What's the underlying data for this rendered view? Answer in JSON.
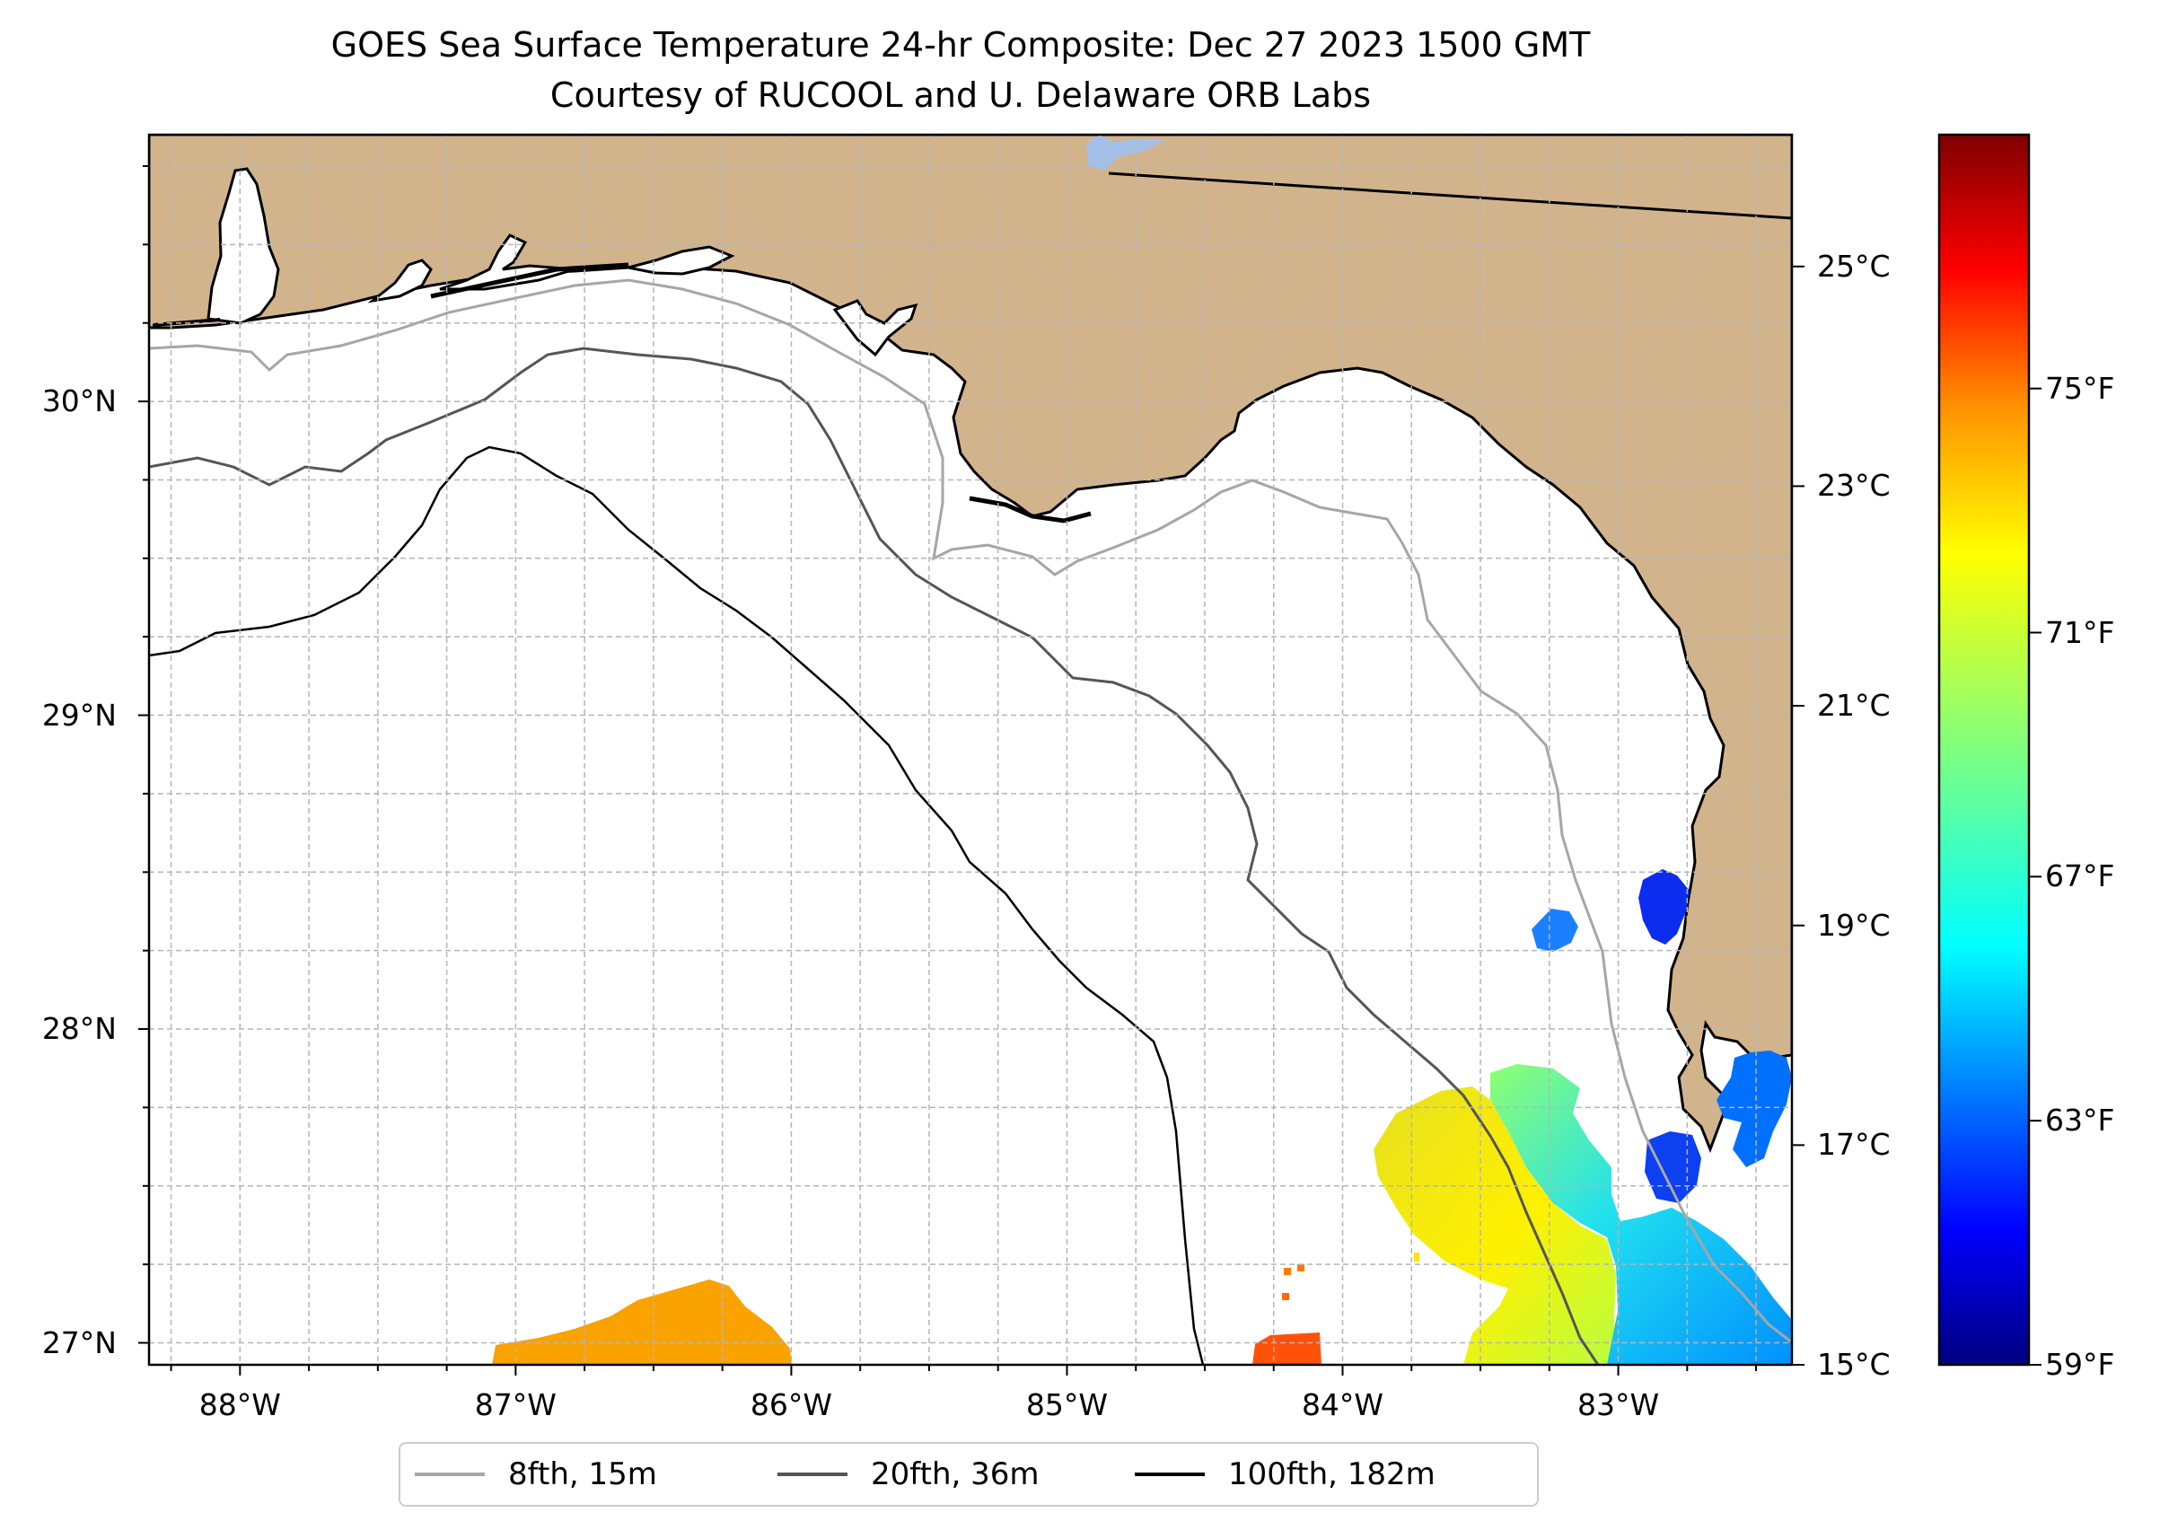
{
  "title": {
    "line1": "GOES Sea Surface Temperature 24-hr Composite: Dec 27 2023 1500 GMT",
    "line2": "Courtesy of RUCOOL and U. Delaware ORB Labs"
  },
  "map": {
    "extent": {
      "lon_min": -88.33,
      "lon_max": -82.37,
      "lat_min": 26.93,
      "lat_max": 30.85
    },
    "colors": {
      "land": "#d2b48c",
      "ocean": "#ffffff",
      "coast": "#000000",
      "grid": "#b0b0b0",
      "lake": "#a3c0e8"
    },
    "lat_labels": [
      {
        "value": 30,
        "text": "30°N"
      },
      {
        "value": 29,
        "text": "29°N"
      },
      {
        "value": 28,
        "text": "28°N"
      },
      {
        "value": 27,
        "text": "27°N"
      }
    ],
    "lon_labels": [
      {
        "value": -88,
        "text": "88°W"
      },
      {
        "value": -87,
        "text": "87°W"
      },
      {
        "value": -86,
        "text": "86°W"
      },
      {
        "value": -85,
        "text": "85°W"
      },
      {
        "value": -84,
        "text": "84°W"
      },
      {
        "value": -83,
        "text": "83°W"
      }
    ]
  },
  "bathymetry_legend": [
    {
      "label": "8fth, 15m",
      "color": "#a6a6a6"
    },
    {
      "label": "20fth, 36m",
      "color": "#555555"
    },
    {
      "label": "100fth, 182m",
      "color": "#000000"
    }
  ],
  "colorbar": {
    "min_c": 15,
    "max_c": 26.2,
    "celsius_ticks": [
      {
        "value": 25,
        "text": "25°C"
      },
      {
        "value": 23,
        "text": "23°C"
      },
      {
        "value": 21,
        "text": "21°C"
      },
      {
        "value": 19,
        "text": "19°C"
      },
      {
        "value": 17,
        "text": "17°C"
      },
      {
        "value": 15,
        "text": "15°C"
      }
    ],
    "fahrenheit_ticks": [
      {
        "value": 75,
        "text": "75°F"
      },
      {
        "value": 71,
        "text": "71°F"
      },
      {
        "value": 67,
        "text": "67°F"
      },
      {
        "value": 63,
        "text": "63°F"
      },
      {
        "value": 59,
        "text": "59°F"
      }
    ],
    "colormap": "jet",
    "jet_stops": [
      "#00007f",
      "#0000ff",
      "#007fff",
      "#00ffff",
      "#7fff7f",
      "#ffff00",
      "#ff7f00",
      "#ff0000",
      "#7f0000"
    ]
  },
  "sst_patches": [
    {
      "name": "sst-patch-offshore-west",
      "temp_c": 23.7
    },
    {
      "name": "sst-patch-south-central",
      "temp_c": 24.8
    },
    {
      "name": "sst-patch-southeast-warm",
      "temp_c": 21.5
    },
    {
      "name": "sst-patch-southeast-cool",
      "temp_c": 18.6
    },
    {
      "name": "sst-patch-tampa-bay",
      "temp_c": 17.6
    },
    {
      "name": "sst-patch-cedar-key",
      "temp_c": 16.2
    },
    {
      "name": "sst-patch-small-offshore",
      "temp_c": 17.9
    },
    {
      "name": "sst-patch-nearshore-south",
      "temp_c": 16.3
    }
  ]
}
